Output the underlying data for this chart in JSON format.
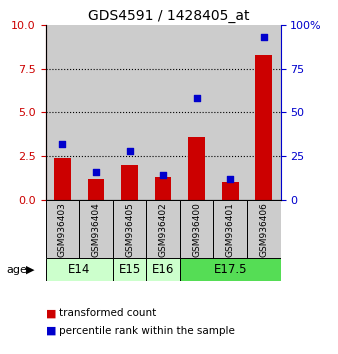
{
  "title": "GDS4591 / 1428405_at",
  "samples": [
    "GSM936403",
    "GSM936404",
    "GSM936405",
    "GSM936402",
    "GSM936400",
    "GSM936401",
    "GSM936406"
  ],
  "transformed_count": [
    2.4,
    1.2,
    2.0,
    1.3,
    3.6,
    1.0,
    8.3
  ],
  "percentile_rank": [
    32,
    16,
    28,
    14,
    58,
    12,
    93
  ],
  "ylim_left": [
    0,
    10
  ],
  "ylim_right": [
    0,
    100
  ],
  "yticks_left": [
    0,
    2.5,
    5,
    7.5,
    10
  ],
  "yticks_right": [
    0,
    25,
    50,
    75,
    100
  ],
  "bar_color": "#cc0000",
  "dot_color": "#0000cc",
  "bar_width": 0.5,
  "dot_size": 18,
  "sample_bg_color": "#cccccc",
  "left_axis_color": "#cc0000",
  "right_axis_color": "#0000cc",
  "legend_bar_label": "transformed count",
  "legend_dot_label": "percentile rank within the sample",
  "age_label": "age",
  "age_groups": [
    {
      "label": "E14",
      "start": 0,
      "end": 2,
      "color": "#ccffcc"
    },
    {
      "label": "E15",
      "start": 2,
      "end": 3,
      "color": "#ccffcc"
    },
    {
      "label": "E16",
      "start": 3,
      "end": 4,
      "color": "#ccffcc"
    },
    {
      "label": "E17.5",
      "start": 4,
      "end": 7,
      "color": "#55dd55"
    }
  ]
}
